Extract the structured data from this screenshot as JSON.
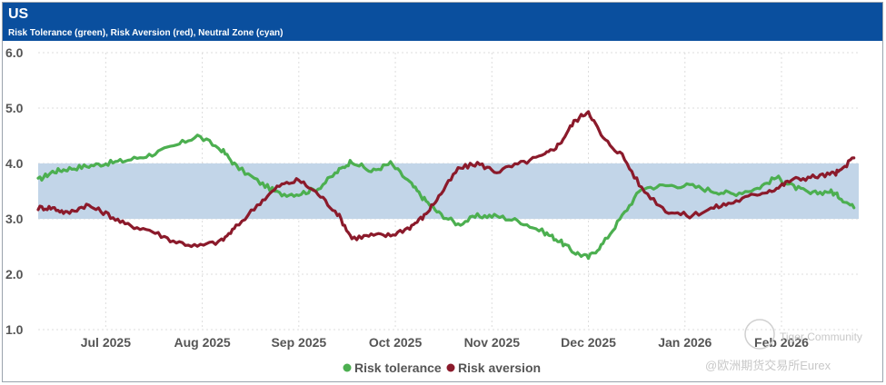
{
  "header": {
    "title": "US",
    "subtitle": "Risk Tolerance (green), Risk Aversion (red), Neutral Zone (cyan)"
  },
  "watermark": {
    "line1": "Tiger Community",
    "line2": "@欧洲期货交易所Eurex"
  },
  "colors": {
    "header_bg": "#0a4f9e",
    "risk_tolerance": "#4caf50",
    "risk_aversion": "#8b1a2b",
    "neutral_zone": "#c2d5e8"
  },
  "chart_data": {
    "type": "line",
    "title": "US",
    "subtitle": "Risk Tolerance (green), Risk Aversion (red), Neutral Zone (cyan)",
    "x_unit": "months since 2025-06-01",
    "xlim": [
      0.3,
      8.8
    ],
    "ylim": [
      1.0,
      6.0
    ],
    "yticks": [
      "1.0",
      "2.0",
      "3.0",
      "4.0",
      "5.0",
      "6.0"
    ],
    "xticks": [
      {
        "label": "Jul 2025",
        "x": 1
      },
      {
        "label": "Aug 2025",
        "x": 2
      },
      {
        "label": "Sep 2025",
        "x": 3
      },
      {
        "label": "Oct 2025",
        "x": 4
      },
      {
        "label": "Nov 2025",
        "x": 5
      },
      {
        "label": "Dec 2025",
        "x": 6
      },
      {
        "label": "Jan 2026",
        "x": 7
      },
      {
        "label": "Feb 2026",
        "x": 8
      }
    ],
    "neutral_zone": [
      3.0,
      4.0
    ],
    "grid": true,
    "legend_position": "bottom-center",
    "series": [
      {
        "name": "Risk tolerance",
        "color": "#4caf50",
        "x": [
          0.3,
          0.45,
          0.6,
          0.8,
          1.0,
          1.2,
          1.45,
          1.7,
          1.95,
          2.2,
          2.35,
          2.6,
          2.8,
          3.0,
          3.2,
          3.4,
          3.55,
          3.75,
          3.95,
          4.15,
          4.3,
          4.45,
          4.65,
          4.85,
          5.05,
          5.3,
          5.55,
          5.7,
          5.85,
          6.0,
          6.15,
          6.35,
          6.55,
          6.8,
          7.05,
          7.3,
          7.5,
          7.75,
          7.95,
          8.1,
          8.3,
          8.5,
          8.6,
          8.75
        ],
        "y": [
          3.7,
          3.85,
          3.9,
          3.95,
          4.0,
          4.05,
          4.15,
          4.3,
          4.5,
          4.25,
          3.95,
          3.65,
          3.45,
          3.45,
          3.55,
          3.85,
          4.05,
          3.85,
          4.0,
          3.65,
          3.35,
          3.1,
          2.9,
          3.05,
          3.05,
          2.95,
          2.75,
          2.6,
          2.4,
          2.3,
          2.55,
          3.05,
          3.55,
          3.6,
          3.6,
          3.5,
          3.45,
          3.55,
          3.75,
          3.6,
          3.45,
          3.5,
          3.4,
          3.2
        ]
      },
      {
        "name": "Risk aversion",
        "color": "#8b1a2b",
        "x": [
          0.3,
          0.45,
          0.6,
          0.8,
          1.0,
          1.2,
          1.45,
          1.7,
          1.95,
          2.2,
          2.35,
          2.6,
          2.8,
          3.0,
          3.2,
          3.4,
          3.55,
          3.75,
          3.95,
          4.15,
          4.3,
          4.45,
          4.65,
          4.85,
          5.05,
          5.3,
          5.55,
          5.7,
          5.85,
          6.0,
          6.15,
          6.35,
          6.55,
          6.8,
          7.05,
          7.3,
          7.5,
          7.75,
          7.95,
          8.1,
          8.3,
          8.5,
          8.6,
          8.75
        ],
        "y": [
          3.2,
          3.2,
          3.1,
          3.25,
          3.1,
          2.9,
          2.8,
          2.6,
          2.5,
          2.6,
          2.85,
          3.3,
          3.6,
          3.7,
          3.45,
          3.1,
          2.65,
          2.7,
          2.7,
          2.85,
          3.05,
          3.4,
          3.9,
          4.0,
          3.85,
          4.0,
          4.15,
          4.35,
          4.75,
          4.95,
          4.45,
          4.15,
          3.55,
          3.15,
          3.05,
          3.2,
          3.3,
          3.45,
          3.55,
          3.7,
          3.75,
          3.8,
          3.85,
          4.1
        ]
      }
    ]
  }
}
